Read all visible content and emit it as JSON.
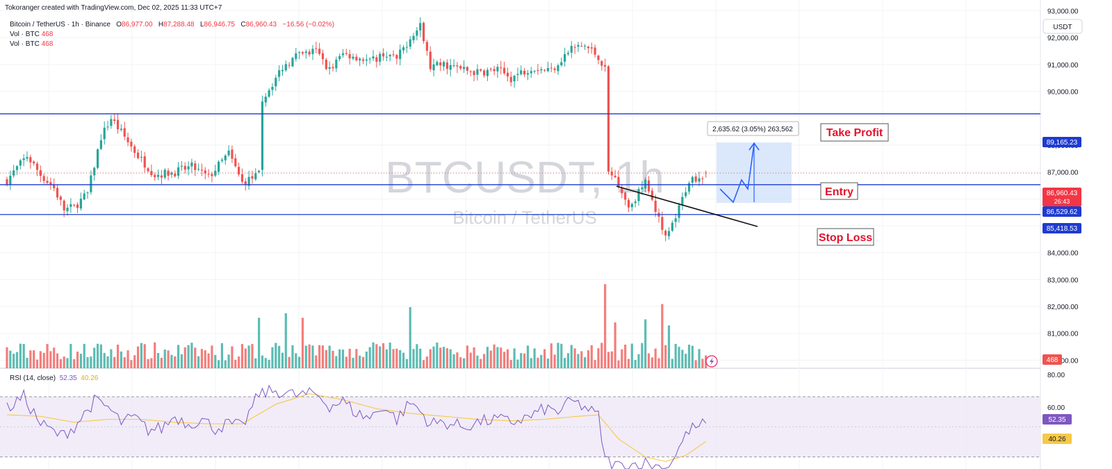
{
  "attribution": "Tokoranger created with TradingView.com, Dec 02, 2025 11:33 UTC+7",
  "legend": {
    "symbol": "Bitcoin / TetherUS · 1h · Binance",
    "o_label": "O",
    "o": "86,977.00",
    "h_label": "H",
    "h": "87,288.48",
    "l_label": "L",
    "l": "86,946.75",
    "c_label": "C",
    "c": "86,960.43",
    "change": "−16.56 (−0.02%)",
    "vol1_label": "Vol · BTC",
    "vol1": "468",
    "vol2_label": "Vol · BTC",
    "vol2": "468"
  },
  "currency": "USDT",
  "watermark": {
    "ticker": "BTCUSDT, 1h",
    "name": "Bitcoin / TetherUS"
  },
  "annotations": {
    "take_profit": "Take Profit",
    "entry": "Entry",
    "stop_loss": "Stop Loss",
    "measure": "2,635.62 (3.05%) 263,562"
  },
  "price_tags": {
    "tp": "89,165.23",
    "last": "86,960.43",
    "countdown": "26:43",
    "entry": "86,529.62",
    "sl": "85,418.53",
    "volume": "468"
  },
  "rsi": {
    "label": "RSI (14, close)",
    "value": "52.35",
    "ma": "40.26",
    "axis_labels": [
      "80.00",
      "60.00"
    ]
  },
  "colors": {
    "up": "#26a69a",
    "down": "#ef5350",
    "level_line": "#1e3bcf",
    "label_red": "#e0142c",
    "rsi_line": "#7e57c2",
    "rsi_ma": "#f7c948",
    "rsi_band": "#ede7f6"
  },
  "chart_data": {
    "type": "candlestick",
    "interval": "1h",
    "y_axis": {
      "labels": [
        "93,000.00",
        "92,000.00",
        "91,000.00",
        "90,000.00",
        "88,000.00",
        "87,000.00",
        "86,000.00",
        "85,000.00",
        "84,000.00",
        "83,000.00",
        "82,000.00",
        "81,000.00",
        "80,000.00"
      ],
      "ylim": [
        79700,
        93400
      ]
    },
    "levels": {
      "take_profit": 89165.23,
      "entry": 86529.62,
      "stop_loss": 85418.53,
      "last": 86960.43
    },
    "rsi_ylim": [
      22,
      88
    ],
    "rsi_bands": [
      70,
      30
    ],
    "price_keypoints": [
      [
        0,
        86700
      ],
      [
        6,
        87600
      ],
      [
        10,
        86900
      ],
      [
        14,
        86400
      ],
      [
        17,
        85600
      ],
      [
        20,
        85700
      ],
      [
        24,
        86200
      ],
      [
        28,
        88300
      ],
      [
        31,
        89000
      ],
      [
        35,
        88300
      ],
      [
        39,
        87600
      ],
      [
        44,
        86900
      ],
      [
        50,
        87000
      ],
      [
        55,
        87200
      ],
      [
        60,
        86800
      ],
      [
        66,
        87700
      ],
      [
        70,
        86600
      ],
      [
        75,
        86900
      ],
      [
        76,
        89700
      ],
      [
        82,
        90900
      ],
      [
        86,
        91300
      ],
      [
        92,
        91500
      ],
      [
        96,
        90800
      ],
      [
        100,
        91400
      ],
      [
        104,
        91300
      ],
      [
        108,
        91100
      ],
      [
        112,
        91400
      ],
      [
        116,
        91200
      ],
      [
        120,
        92000
      ],
      [
        123,
        92400
      ],
      [
        126,
        90900
      ],
      [
        130,
        91000
      ],
      [
        136,
        90800
      ],
      [
        140,
        90700
      ],
      [
        146,
        90800
      ],
      [
        150,
        90500
      ],
      [
        156,
        90900
      ],
      [
        162,
        90800
      ],
      [
        168,
        91600
      ],
      [
        172,
        91700
      ],
      [
        176,
        91300
      ],
      [
        178,
        90800
      ],
      [
        179,
        87000
      ],
      [
        182,
        86600
      ],
      [
        185,
        85700
      ],
      [
        190,
        86600
      ],
      [
        193,
        85600
      ],
      [
        196,
        84500
      ],
      [
        199,
        85300
      ],
      [
        203,
        86700
      ],
      [
        208,
        86960
      ]
    ],
    "rsi_keypoints": [
      [
        0,
        62
      ],
      [
        5,
        70
      ],
      [
        10,
        52
      ],
      [
        16,
        44
      ],
      [
        20,
        50
      ],
      [
        26,
        67
      ],
      [
        30,
        63
      ],
      [
        34,
        53
      ],
      [
        38,
        56
      ],
      [
        42,
        48
      ],
      [
        46,
        49
      ],
      [
        50,
        57
      ],
      [
        54,
        52
      ],
      [
        58,
        55
      ],
      [
        62,
        49
      ],
      [
        66,
        52
      ],
      [
        70,
        50
      ],
      [
        75,
        72
      ],
      [
        80,
        74
      ],
      [
        86,
        71
      ],
      [
        92,
        72
      ],
      [
        96,
        64
      ],
      [
        100,
        67
      ],
      [
        104,
        59
      ],
      [
        108,
        56
      ],
      [
        112,
        64
      ],
      [
        116,
        55
      ],
      [
        120,
        66
      ],
      [
        122,
        63
      ],
      [
        126,
        52
      ],
      [
        130,
        53
      ],
      [
        136,
        50
      ],
      [
        140,
        53
      ],
      [
        146,
        55
      ],
      [
        150,
        53
      ],
      [
        156,
        57
      ],
      [
        160,
        62
      ],
      [
        164,
        60
      ],
      [
        168,
        67
      ],
      [
        172,
        63
      ],
      [
        176,
        57
      ],
      [
        178,
        28
      ],
      [
        182,
        24
      ],
      [
        190,
        26
      ],
      [
        196,
        22
      ],
      [
        199,
        32
      ],
      [
        203,
        48
      ],
      [
        208,
        52.35
      ]
    ],
    "rsi_ma_keypoints": [
      [
        0,
        58
      ],
      [
        10,
        57
      ],
      [
        20,
        53
      ],
      [
        30,
        55
      ],
      [
        40,
        55
      ],
      [
        50,
        53
      ],
      [
        60,
        52
      ],
      [
        70,
        52
      ],
      [
        80,
        65
      ],
      [
        90,
        72
      ],
      [
        100,
        68
      ],
      [
        110,
        62
      ],
      [
        120,
        59
      ],
      [
        130,
        57
      ],
      [
        140,
        55
      ],
      [
        150,
        54
      ],
      [
        160,
        55
      ],
      [
        170,
        57
      ],
      [
        176,
        58
      ],
      [
        182,
        42
      ],
      [
        190,
        30
      ],
      [
        196,
        27
      ],
      [
        202,
        31
      ],
      [
        208,
        40.26
      ]
    ],
    "volume_spikes": {
      "75": 3.3,
      "83": 3.6,
      "88": 3.3,
      "120": 4.0,
      "178": 5.5,
      "181": 3.0,
      "190": 3.2,
      "195": 4.2,
      "197": 2.8
    }
  }
}
